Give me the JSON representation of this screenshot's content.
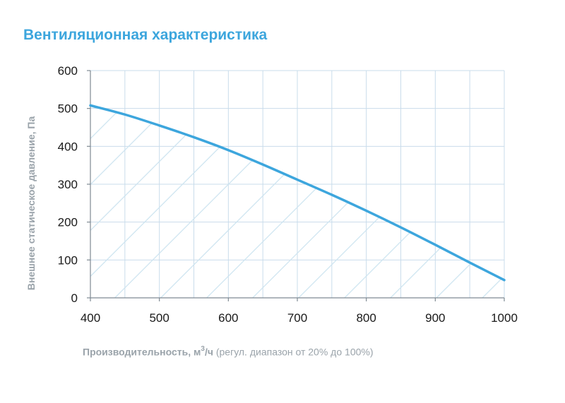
{
  "title": "Вентиляционная характеристика",
  "colors": {
    "curve": "#3da6dd",
    "title": "#3da6dd",
    "grid": "#c9dceb",
    "axis": "#7f8a93",
    "hatch": "#cde4f0",
    "label": "#9aa3aa"
  },
  "xlabel": {
    "bold_part": "Производительность, м",
    "superscript": "3",
    "bold_suffix": "/ч",
    "normal_part": " (регул. диапазон от 20% до 100%)"
  },
  "chart_data": {
    "type": "area",
    "title": "Вентиляционная характеристика",
    "ylabel": "Внешнее статическое давление, Па",
    "xlabel": "Производительность, м3/ч (регул. диапазон от 20% до 100%)",
    "xlim": [
      400,
      1000
    ],
    "ylim": [
      0,
      600
    ],
    "x_ticks": [
      400,
      500,
      600,
      700,
      800,
      900,
      1000
    ],
    "y_ticks": [
      0,
      100,
      200,
      300,
      400,
      500,
      600
    ],
    "grid": true,
    "fill": "hatched",
    "series": [
      {
        "x": [
          400,
          450,
          500,
          550,
          600,
          650,
          700,
          750,
          800,
          850,
          900,
          950,
          1000
        ],
        "y": [
          508,
          484,
          455,
          424,
          390,
          352,
          312,
          272,
          230,
          186,
          140,
          93,
          47
        ]
      }
    ]
  }
}
